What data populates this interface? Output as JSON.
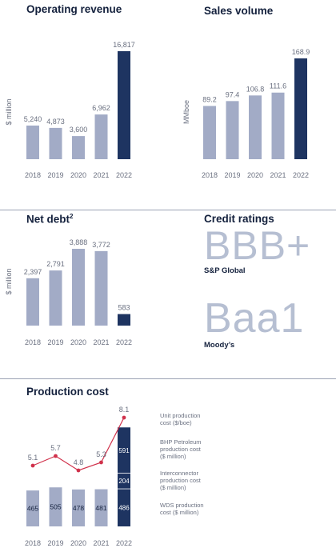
{
  "colors": {
    "bar": "#a2abc6",
    "highlight": "#1e3461",
    "line": "#d0314b",
    "text": "#6a7080",
    "heading": "#14213d",
    "rule": "#9aa2b4"
  },
  "sections": {
    "operating_revenue": "Operating revenue",
    "sales_volume": "Sales volume",
    "net_debt": "Net debt",
    "net_debt_sup": "2",
    "credit_ratings": "Credit ratings",
    "production_cost": "Production cost"
  },
  "ratings": [
    {
      "rating": "BBB+",
      "agency": "S&P Global"
    },
    {
      "rating": "Baa1",
      "agency": "Moody’s"
    }
  ],
  "chart_data": [
    {
      "id": "rev",
      "type": "bar",
      "title": "Operating revenue",
      "ylabel": "$ million",
      "categories": [
        "2018",
        "2019",
        "2020",
        "2021",
        "2022"
      ],
      "values": [
        5240,
        4873,
        3600,
        6962,
        16817
      ],
      "labels": [
        "5,240",
        "4,873",
        "3,600",
        "6,962",
        "16,817"
      ],
      "highlight_index": 4
    },
    {
      "id": "vol",
      "type": "bar",
      "title": "Sales volume",
      "ylabel": "MMboe",
      "categories": [
        "2018",
        "2019",
        "2020",
        "2021",
        "2022"
      ],
      "values": [
        89.2,
        97.4,
        106.8,
        111.6,
        168.9
      ],
      "labels": [
        "89.2",
        "97.4",
        "106.8",
        "111.6",
        "168.9"
      ],
      "highlight_index": 4
    },
    {
      "id": "debt",
      "type": "bar",
      "title": "Net debt",
      "ylabel": "$ million",
      "categories": [
        "2018",
        "2019",
        "2020",
        "2021",
        "2022"
      ],
      "values": [
        2397,
        2791,
        3888,
        3772,
        583
      ],
      "labels": [
        "2,397",
        "2,791",
        "3,888",
        "3,772",
        "583"
      ],
      "highlight_index": 4
    },
    {
      "id": "cost",
      "type": "bar",
      "title": "Production cost",
      "categories": [
        "2018",
        "2019",
        "2020",
        "2021",
        "2022"
      ],
      "bars": [
        {
          "value": 465,
          "label": "465"
        },
        {
          "value": 505,
          "label": "505"
        },
        {
          "value": 478,
          "label": "478"
        },
        {
          "value": 481,
          "label": "481"
        },
        {
          "stacked": [
            {
              "name": "WDS production cost ($ million)",
              "value": 486,
              "label": "486"
            },
            {
              "name": "Interconnector production cost ($ million)",
              "value": 204,
              "label": "204"
            },
            {
              "name": "BHP Petroleum production cost ($ million)",
              "value": 591,
              "label": "591"
            }
          ]
        }
      ],
      "line": {
        "name": "Unit production cost ($/boe)",
        "values": [
          5.1,
          5.7,
          4.8,
          5.3,
          8.1
        ],
        "labels": [
          "5.1",
          "5.7",
          "4.8",
          "5.3",
          "8.1"
        ]
      },
      "legend": [
        "Unit production cost ($/boe)",
        "BHP Petroleum production cost ($ million)",
        "Interconnector production cost ($ million)",
        "WDS production cost ($ million)"
      ]
    }
  ]
}
